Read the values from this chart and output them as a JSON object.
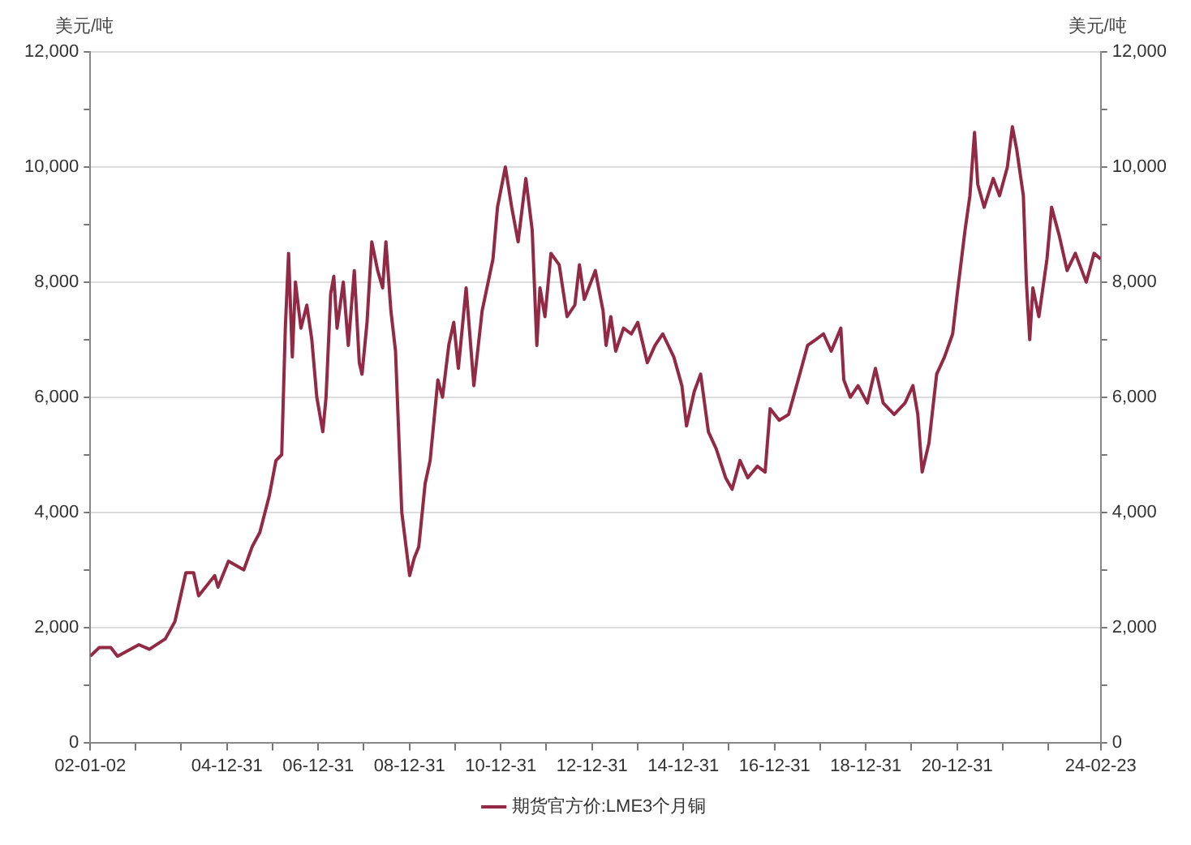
{
  "chart_data": {
    "type": "line",
    "ylabel": "美元/吨",
    "y2label": "美元/吨",
    "x": [
      "2002-01-02",
      "2002-03-15",
      "2002-06-15",
      "2002-08-08",
      "2003-01-26",
      "2003-04-20",
      "2003-08-25",
      "2003-11-10",
      "2004-02-06",
      "2004-04-08",
      "2004-05-18",
      "2004-09-24",
      "2004-10-20",
      "2005-01-12",
      "2005-05-15",
      "2005-07-20",
      "2005-09-20",
      "2005-12-06",
      "2006-01-27",
      "2006-03-14",
      "2006-04-12",
      "2006-05-08",
      "2006-06-07",
      "2006-07-02",
      "2006-08-15",
      "2006-10-01",
      "2006-11-10",
      "2006-12-20",
      "2007-02-06",
      "2007-03-04",
      "2007-04-10",
      "2007-05-05",
      "2007-05-31",
      "2007-07-20",
      "2007-08-29",
      "2007-10-16",
      "2007-11-25",
      "2007-12-17",
      "2008-01-26",
      "2008-03-04",
      "2008-04-20",
      "2008-05-30",
      "2008-06-25",
      "2008-08-04",
      "2008-09-10",
      "2008-10-30",
      "2009-01-01",
      "2009-02-06",
      "2009-03-15",
      "2009-05-05",
      "2009-06-14",
      "2009-08-15",
      "2009-09-21",
      "2009-11-10",
      "2009-12-20",
      "2010-01-26",
      "2010-03-29",
      "2010-05-30",
      "2010-08-04",
      "2010-10-30",
      "2010-12-05",
      "2011-02-06",
      "2011-03-29",
      "2011-05-19",
      "2011-07-20",
      "2011-09-09",
      "2011-10-16",
      "2011-11-10",
      "2011-12-20",
      "2012-02-06",
      "2012-04-12",
      "2012-06-14",
      "2012-08-15",
      "2012-09-21",
      "2012-10-30",
      "2013-01-26",
      "2013-03-29",
      "2013-04-22",
      "2013-05-30",
      "2013-07-08",
      "2013-09-09",
      "2013-11-10",
      "2014-01-01",
      "2014-03-18",
      "2014-05-19",
      "2014-07-20",
      "2014-10-16",
      "2014-12-20",
      "2015-01-26",
      "2015-03-29",
      "2015-05-19",
      "2015-07-20",
      "2015-09-21",
      "2015-12-05",
      "2016-01-26",
      "2016-03-29",
      "2016-05-30",
      "2016-08-15",
      "2016-10-16",
      "2016-11-25",
      "2017-02-06",
      "2017-04-22",
      "2017-07-20",
      "2017-09-21",
      "2017-11-25",
      "2018-01-26",
      "2018-03-29",
      "2018-06-14",
      "2018-07-08",
      "2018-08-29",
      "2018-10-30",
      "2019-01-12",
      "2019-03-18",
      "2019-05-19",
      "2019-08-15",
      "2019-11-10",
      "2020-01-12",
      "2020-02-20",
      "2020-03-26",
      "2020-05-19",
      "2020-07-20",
      "2020-09-21",
      "2020-11-25",
      "2021-01-01",
      "2021-03-04",
      "2021-04-12",
      "2021-05-19",
      "2021-06-14",
      "2021-08-04",
      "2021-10-16",
      "2021-12-05",
      "2022-02-06",
      "2022-03-18",
      "2022-04-22",
      "2022-06-14",
      "2022-07-08",
      "2022-08-04",
      "2022-08-29",
      "2022-10-16",
      "2022-12-20",
      "2023-01-26",
      "2023-03-29",
      "2023-05-30",
      "2023-08-04",
      "2023-10-30",
      "2024-01-01",
      "2024-02-23"
    ],
    "series": [
      {
        "name": "期货官方价:LME3个月铜",
        "color": "#922a45",
        "values": [
          1500,
          1650,
          1650,
          1500,
          1700,
          1620,
          1800,
          2100,
          2950,
          2950,
          2550,
          2900,
          2700,
          3150,
          3000,
          3400,
          3650,
          4300,
          4900,
          5000,
          7200,
          8500,
          6700,
          8000,
          7200,
          7600,
          7000,
          6000,
          5400,
          6000,
          7800,
          8100,
          7200,
          8000,
          6900,
          8200,
          6600,
          6400,
          7300,
          8700,
          8200,
          7900,
          8700,
          7500,
          6800,
          4000,
          2900,
          3200,
          3400,
          4500,
          4900,
          6300,
          6000,
          6900,
          7300,
          6500,
          7900,
          6200,
          7500,
          8400,
          9300,
          10000,
          9300,
          8700,
          9800,
          8900,
          6900,
          7900,
          7400,
          8500,
          8300,
          7400,
          7600,
          8300,
          7700,
          8200,
          7500,
          6900,
          7400,
          6800,
          7200,
          7100,
          7300,
          6600,
          6900,
          7100,
          6700,
          6200,
          5500,
          6100,
          6400,
          5400,
          5100,
          4600,
          4400,
          4900,
          4600,
          4800,
          4700,
          5800,
          5600,
          5700,
          6400,
          6900,
          7000,
          7100,
          6800,
          7200,
          6300,
          6000,
          6200,
          5900,
          6500,
          5900,
          5700,
          5900,
          6200,
          5700,
          4700,
          5200,
          6400,
          6700,
          7100,
          7800,
          8900,
          9500,
          10600,
          9700,
          9300,
          9800,
          9500,
          10000,
          10700,
          10300,
          9500,
          8000,
          7000,
          7900,
          7400,
          8400,
          9300,
          8800,
          8200,
          8500,
          8000,
          8500,
          8400
        ]
      }
    ],
    "xlim": [
      "2002-01-02",
      "2024-02-23"
    ],
    "xticks": [
      {
        "value": "2002-01-02",
        "label": "02-01-02"
      },
      {
        "value": "2002-12-31",
        "label": null
      },
      {
        "value": "2003-12-31",
        "label": null
      },
      {
        "value": "2004-12-31",
        "label": "04-12-31"
      },
      {
        "value": "2005-12-31",
        "label": null
      },
      {
        "value": "2006-12-31",
        "label": "06-12-31"
      },
      {
        "value": "2007-12-31",
        "label": null
      },
      {
        "value": "2008-12-31",
        "label": "08-12-31"
      },
      {
        "value": "2009-12-31",
        "label": null
      },
      {
        "value": "2010-12-31",
        "label": "10-12-31"
      },
      {
        "value": "2011-12-31",
        "label": null
      },
      {
        "value": "2012-12-31",
        "label": "12-12-31"
      },
      {
        "value": "2013-12-31",
        "label": null
      },
      {
        "value": "2014-12-31",
        "label": "14-12-31"
      },
      {
        "value": "2015-12-31",
        "label": null
      },
      {
        "value": "2016-12-31",
        "label": "16-12-31"
      },
      {
        "value": "2017-12-31",
        "label": null
      },
      {
        "value": "2018-12-31",
        "label": "18-12-31"
      },
      {
        "value": "2019-12-31",
        "label": null
      },
      {
        "value": "2020-12-31",
        "label": "20-12-31"
      },
      {
        "value": "2021-12-31",
        "label": null
      },
      {
        "value": "2022-12-31",
        "label": null
      },
      {
        "value": "2024-02-23",
        "label": "24-02-23"
      }
    ],
    "ylim": [
      0,
      12000
    ],
    "yticks": [
      0,
      {
        "value": 1000,
        "label": null
      },
      {
        "value": 2000,
        "label": "2,000"
      },
      {
        "value": 3000,
        "label": null
      },
      {
        "value": 4000,
        "label": "4,000"
      },
      {
        "value": 5000,
        "label": null
      },
      {
        "value": 6000,
        "label": "6,000"
      },
      {
        "value": 7000,
        "label": null
      },
      {
        "value": 8000,
        "label": "8,000"
      },
      {
        "value": 9000,
        "label": null
      },
      {
        "value": 10000,
        "label": "10,000"
      },
      {
        "value": 11000,
        "label": null
      },
      {
        "value": 12000,
        "label": "12,000"
      }
    ],
    "y2lim": [
      0,
      12000
    ],
    "y2ticks": [
      0,
      {
        "value": 1000,
        "label": null
      },
      {
        "value": 2000,
        "label": "2,000"
      },
      {
        "value": 3000,
        "label": null
      },
      {
        "value": 4000,
        "label": "4,000"
      },
      {
        "value": 5000,
        "label": null
      },
      {
        "value": 6000,
        "label": "6,000"
      },
      {
        "value": 7000,
        "label": null
      },
      {
        "value": 8000,
        "label": "8,000"
      },
      {
        "value": 9000,
        "label": null
      },
      {
        "value": 10000,
        "label": "10,000"
      },
      {
        "value": 11000,
        "label": null
      },
      {
        "value": 12000,
        "label": "12,000"
      }
    ],
    "grid": "y",
    "legend": "bottom",
    "marker": "none",
    "line_style": "solid"
  }
}
